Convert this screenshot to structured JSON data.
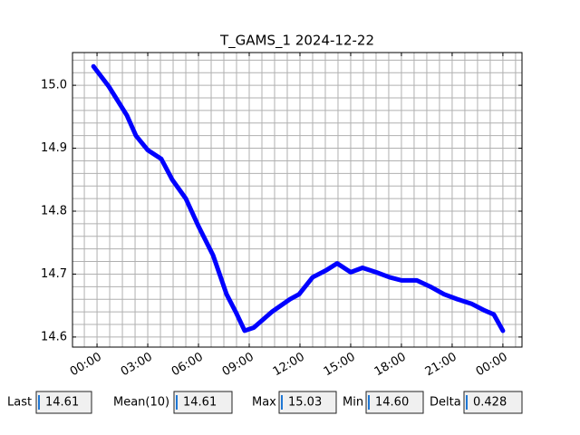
{
  "chart_data": {
    "type": "line",
    "title": "T_GAMS_1 2024-12-22",
    "x": [
      -0.21,
      0.7,
      1.77,
      2.3,
      3.0,
      3.8,
      4.45,
      5.25,
      6.0,
      6.86,
      7.66,
      8.2,
      8.73,
      9.27,
      10.34,
      11.41,
      11.95,
      12.75,
      13.55,
      14.2,
      15.0,
      15.7,
      16.5,
      17.3,
      18.0,
      18.91,
      19.71,
      20.52,
      21.32,
      22.13,
      22.93,
      23.46,
      24.0
    ],
    "series": [
      {
        "color": "#0000ff",
        "values": [
          15.03,
          14.998,
          14.952,
          14.92,
          14.897,
          14.883,
          14.85,
          14.82,
          14.776,
          14.73,
          14.668,
          14.64,
          14.61,
          14.615,
          14.64,
          14.66,
          14.668,
          14.695,
          14.706,
          14.717,
          14.703,
          14.71,
          14.703,
          14.695,
          14.69,
          14.69,
          14.68,
          14.668,
          14.66,
          14.653,
          14.642,
          14.636,
          14.61
        ]
      }
    ],
    "xlim": [
      -1.45,
      25.13
    ],
    "ylim": [
      14.584,
      15.052
    ],
    "xticks": [
      {
        "value": 0,
        "label": "00:00"
      },
      {
        "value": 3,
        "label": "03:00"
      },
      {
        "value": 6,
        "label": "06:00"
      },
      {
        "value": 9,
        "label": "09:00"
      },
      {
        "value": 12,
        "label": "12:00"
      },
      {
        "value": 15,
        "label": "15:00"
      },
      {
        "value": 18,
        "label": "18:00"
      },
      {
        "value": 21,
        "label": "21:00"
      },
      {
        "value": 24,
        "label": "00:00"
      }
    ],
    "yticks": [
      14.6,
      14.7,
      14.8,
      14.9,
      {
        "value": 15,
        "label": "15.0"
      }
    ],
    "xminorticks": [
      -0.75,
      0,
      0.75,
      1.5,
      2.25,
      3,
      3.75,
      4.5,
      5.25,
      6,
      6.75,
      7.5,
      8.25,
      9,
      9.75,
      10.5,
      11.25,
      12,
      12.75,
      13.5,
      14.25,
      15,
      15.75,
      16.5,
      17.25,
      18,
      18.75,
      19.5,
      20.25,
      21,
      21.75,
      22.5,
      23.25,
      24,
      24.75
    ],
    "yminorticks": [
      14.6,
      14.62,
      14.64,
      14.66,
      14.68,
      14.7,
      14.72,
      14.74,
      14.76,
      14.78,
      14.8,
      14.82,
      14.84,
      14.86,
      14.88,
      14.9,
      14.92,
      14.94,
      14.96,
      14.98,
      15.0,
      15.02,
      15.04
    ],
    "grid": true
  },
  "readouts": [
    {
      "label": "Last",
      "value": "14.61"
    },
    {
      "label": "Mean(10)",
      "value": "14.61"
    },
    {
      "label": "Max",
      "value": "15.03"
    },
    {
      "label": "Min",
      "value": "14.60"
    },
    {
      "label": "Delta",
      "value": "0.428"
    }
  ]
}
